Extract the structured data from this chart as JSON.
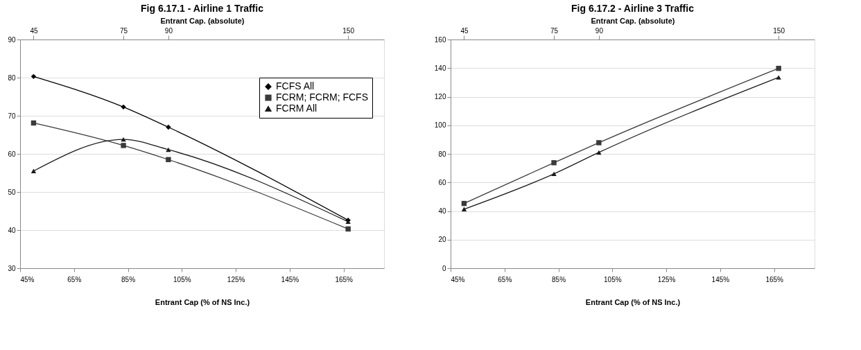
{
  "chart_data": [
    {
      "type": "line",
      "title": "Fig 6.17.1 - Airline 1 Traffic",
      "xlabel": "Entrant Cap (% of NS Inc.)",
      "x2label": "Entrant Cap. (absolute)",
      "x": [
        50,
        83.33,
        100,
        166.67
      ],
      "series": [
        {
          "name": "FCFS All",
          "color": "#000000",
          "marker": "diamond",
          "values": [
            80.3,
            72.3,
            67.0,
            42.6
          ]
        },
        {
          "name": "FCRM; FCRM; FCFS",
          "color": "#3a3a3a",
          "marker": "square",
          "values": [
            68.1,
            62.2,
            58.5,
            40.3
          ]
        },
        {
          "name": "FCRM All",
          "color": "#1a1a1a",
          "marker": "triangle",
          "values": [
            55.5,
            63.8,
            61.1,
            42.2
          ]
        }
      ],
      "xlim": [
        45,
        180
      ],
      "xticks": [
        {
          "value": 45,
          "label": "45%"
        },
        {
          "value": 65,
          "label": "65%"
        },
        {
          "value": 85,
          "label": "85%"
        },
        {
          "value": 105,
          "label": "105%"
        },
        {
          "value": 125,
          "label": "125%"
        },
        {
          "value": 145,
          "label": "145%"
        },
        {
          "value": 165,
          "label": "165%"
        }
      ],
      "x2lim": [
        40.5,
        162
      ],
      "x2ticks": [
        45,
        75,
        90,
        150
      ],
      "ylim": [
        30,
        90
      ],
      "yticks": [
        30,
        40,
        50,
        60,
        70,
        80,
        90
      ],
      "grid": "y",
      "legend": "top right",
      "line_style": "solid"
    },
    {
      "type": "line",
      "title": "Fig 6.17.2 - Airline 3 Traffic",
      "xlabel": "Entrant Cap (% of NS Inc.)",
      "x2label": "Entrant Cap. (absolute)",
      "x": [
        50,
        83.33,
        100,
        166.67
      ],
      "series": [
        {
          "color": "#3a3a3a",
          "marker": "square",
          "values": [
            45.3,
            73.8,
            87.8,
            139.8
          ]
        },
        {
          "color": "#1a1a1a",
          "marker": "triangle",
          "values": [
            41.3,
            66.0,
            81.0,
            133.5
          ]
        }
      ],
      "xlim": [
        45,
        180
      ],
      "xticks": [
        {
          "value": 45,
          "label": "45%"
        },
        {
          "value": 65,
          "label": "65%"
        },
        {
          "value": 85,
          "label": "85%"
        },
        {
          "value": 105,
          "label": "105%"
        },
        {
          "value": 125,
          "label": "125%"
        },
        {
          "value": 145,
          "label": "145%"
        },
        {
          "value": 165,
          "label": "165%"
        }
      ],
      "x2lim": [
        40.5,
        162
      ],
      "x2ticks": [
        45,
        75,
        90,
        150
      ],
      "ylim": [
        0,
        160
      ],
      "yticks": [
        0,
        20,
        40,
        60,
        80,
        100,
        120,
        140,
        160
      ],
      "grid": "y",
      "line_style": "solid"
    }
  ]
}
